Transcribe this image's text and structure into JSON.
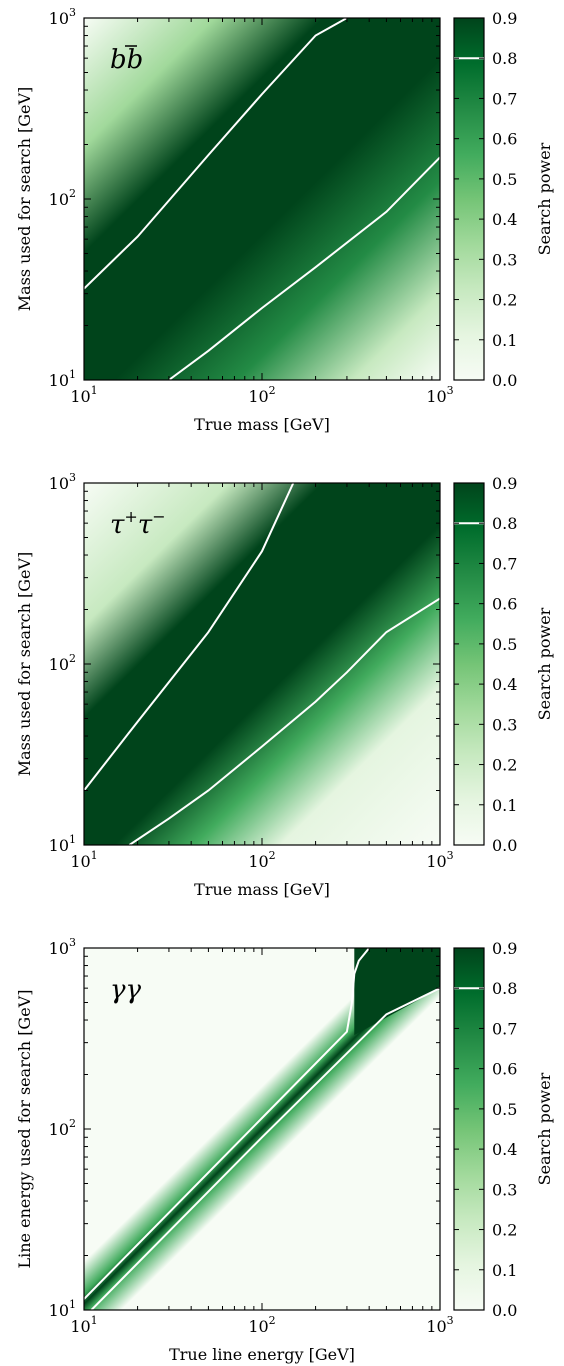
{
  "chart_data": [
    {
      "type": "heatmap",
      "panel_label": "b̅b",
      "panel_label_parts": [
        "b",
        "b",
        "̅"
      ],
      "xlabel": "True mass [GeV]",
      "ylabel": "Mass used for search [GeV]",
      "x_scale": "log",
      "y_scale": "log",
      "xlim": [
        10,
        1000
      ],
      "ylim": [
        10,
        1000
      ],
      "x_ticks": [
        {
          "base": "10",
          "exp": "1"
        },
        {
          "base": "10",
          "exp": "2"
        },
        {
          "base": "10",
          "exp": "3"
        }
      ],
      "y_ticks": [
        {
          "base": "10",
          "exp": "1"
        },
        {
          "base": "10",
          "exp": "2"
        },
        {
          "base": "10",
          "exp": "3"
        }
      ],
      "colorbar_label": "Search power",
      "colorbar_range": [
        0,
        0.9
      ],
      "colorbar_ticks": [
        "0.0",
        "0.1",
        "0.2",
        "0.3",
        "0.4",
        "0.5",
        "0.6",
        "0.7",
        "0.8",
        "0.9"
      ],
      "contour_level": 0.8,
      "contours": [
        {
          "name": "upper",
          "x": [
            10,
            20,
            50,
            100,
            200,
            300
          ],
          "y": [
            32,
            62,
            175,
            380,
            800,
            1000
          ]
        },
        {
          "name": "lower",
          "x": [
            30,
            50,
            100,
            200,
            500,
            1000
          ],
          "y": [
            10,
            14.5,
            25,
            42,
            85,
            170
          ]
        }
      ],
      "colors": {
        "low": "#f7fcf5",
        "mid": "#41ab5d",
        "high": "#00441b"
      }
    },
    {
      "type": "heatmap",
      "panel_label": "τ⁺τ⁻",
      "panel_label_parts": [
        "τ",
        "+",
        "τ",
        "−"
      ],
      "xlabel": "True mass [GeV]",
      "ylabel": "Mass used for search [GeV]",
      "x_scale": "log",
      "y_scale": "log",
      "xlim": [
        10,
        1000
      ],
      "ylim": [
        10,
        1000
      ],
      "x_ticks": [
        {
          "base": "10",
          "exp": "1"
        },
        {
          "base": "10",
          "exp": "2"
        },
        {
          "base": "10",
          "exp": "3"
        }
      ],
      "y_ticks": [
        {
          "base": "10",
          "exp": "1"
        },
        {
          "base": "10",
          "exp": "2"
        },
        {
          "base": "10",
          "exp": "3"
        }
      ],
      "colorbar_label": "Search power",
      "colorbar_range": [
        0,
        0.9
      ],
      "colorbar_ticks": [
        "0.0",
        "0.1",
        "0.2",
        "0.3",
        "0.4",
        "0.5",
        "0.6",
        "0.7",
        "0.8",
        "0.9"
      ],
      "contour_level": 0.8,
      "contours": [
        {
          "name": "upper",
          "x": [
            10,
            20,
            50,
            100,
            150
          ],
          "y": [
            20,
            48,
            150,
            420,
            1000
          ]
        },
        {
          "name": "lower",
          "x": [
            18,
            30,
            50,
            100,
            200,
            300,
            500,
            1000
          ],
          "y": [
            10,
            14,
            20,
            35,
            62,
            90,
            150,
            230
          ]
        }
      ],
      "colors": {
        "low": "#f7fcf5",
        "mid": "#41ab5d",
        "high": "#00441b"
      }
    },
    {
      "type": "heatmap",
      "panel_label": "γγ",
      "xlabel": "True line energy [GeV]",
      "ylabel": "Line energy used for search [GeV]",
      "x_scale": "log",
      "y_scale": "log",
      "xlim": [
        10,
        1000
      ],
      "ylim": [
        10,
        1000
      ],
      "x_ticks": [
        {
          "base": "10",
          "exp": "1"
        },
        {
          "base": "10",
          "exp": "2"
        },
        {
          "base": "10",
          "exp": "3"
        }
      ],
      "y_ticks": [
        {
          "base": "10",
          "exp": "1"
        },
        {
          "base": "10",
          "exp": "2"
        },
        {
          "base": "10",
          "exp": "3"
        }
      ],
      "colorbar_label": "Search power",
      "colorbar_range": [
        0,
        0.9
      ],
      "colorbar_ticks": [
        "0.0",
        "0.1",
        "0.2",
        "0.3",
        "0.4",
        "0.5",
        "0.6",
        "0.7",
        "0.8",
        "0.9"
      ],
      "contour_level": 0.8,
      "contours": [
        {
          "name": "upper",
          "x": [
            10,
            100,
            300,
            320,
            330,
            350,
            400
          ],
          "y": [
            11.5,
            115,
            345,
            500,
            720,
            850,
            1000
          ]
        },
        {
          "name": "lower",
          "x": [
            11,
            100,
            500,
            1000
          ],
          "y": [
            10,
            90,
            430,
            600
          ]
        }
      ],
      "colors": {
        "low": "#f7fcf5",
        "mid": "#41ab5d",
        "high": "#00441b"
      }
    }
  ]
}
